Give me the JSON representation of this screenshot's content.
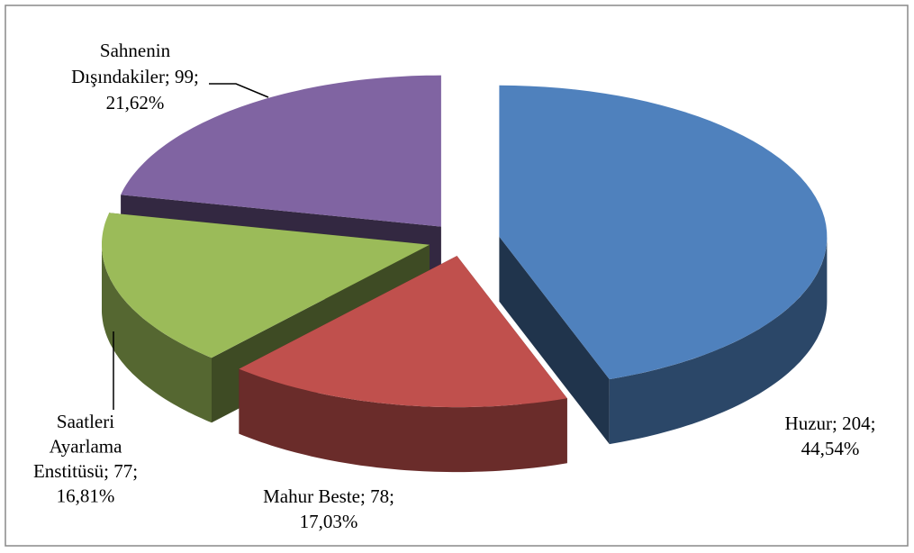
{
  "chart_data": {
    "type": "pie3d",
    "categories": [
      "Huzur",
      "Mahur Beste",
      "Saatleri Ayarlama Enstitüsü",
      "Sahnenin Dışındakiler"
    ],
    "values": [
      204,
      78,
      77,
      99
    ],
    "value_labels": [
      [
        "Huzur; 204;",
        "44,54%"
      ],
      [
        "Mahur Beste; 78;",
        "17,03%"
      ],
      [
        "Saatleri",
        "Ayarlama",
        "Enstitüsü; 77;",
        "16,81%"
      ],
      [
        "Sahnenin",
        "Dışındakiler; 99;",
        "21,62%"
      ]
    ],
    "colors": [
      "#4f81bd",
      "#c0504d",
      "#9bbb59",
      "#8064a2"
    ]
  }
}
